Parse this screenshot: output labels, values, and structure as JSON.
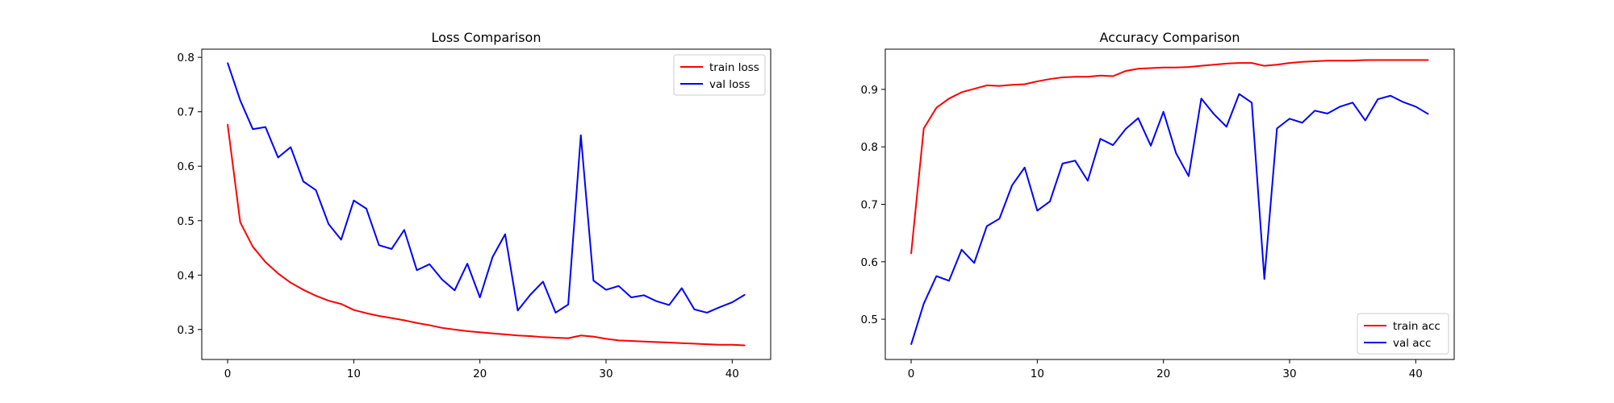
{
  "chart_data": [
    {
      "type": "line",
      "title": "Loss Comparison",
      "xlabel": "",
      "ylabel": "",
      "x": [
        0,
        1,
        2,
        3,
        4,
        5,
        6,
        7,
        8,
        9,
        10,
        11,
        12,
        13,
        14,
        15,
        16,
        17,
        18,
        19,
        20,
        21,
        22,
        23,
        24,
        25,
        26,
        27,
        28,
        29,
        30,
        31,
        32,
        33,
        34,
        35,
        36,
        37,
        38,
        39,
        40,
        41
      ],
      "xlim": [
        -2.05,
        43.05
      ],
      "ylim": [
        0.245,
        0.815
      ],
      "xticks": [
        0,
        10,
        20,
        30,
        40
      ],
      "yticks": [
        0.3,
        0.4,
        0.5,
        0.6,
        0.7,
        0.8
      ],
      "ytick_labels": [
        "0.3",
        "0.4",
        "0.5",
        "0.6",
        "0.7",
        "0.8"
      ],
      "legend_loc": "upper right",
      "grid": false,
      "series": [
        {
          "name": "train loss",
          "color": "#ff0000",
          "values": [
            0.677,
            0.497,
            0.452,
            0.424,
            0.403,
            0.386,
            0.373,
            0.362,
            0.353,
            0.347,
            0.336,
            0.33,
            0.325,
            0.321,
            0.317,
            0.312,
            0.308,
            0.303,
            0.3,
            0.297,
            0.295,
            0.293,
            0.291,
            0.289,
            0.288,
            0.286,
            0.285,
            0.284,
            0.289,
            0.287,
            0.283,
            0.28,
            0.279,
            0.278,
            0.277,
            0.276,
            0.275,
            0.274,
            0.273,
            0.272,
            0.272,
            0.271
          ]
        },
        {
          "name": "val loss",
          "color": "#0000ff",
          "values": [
            0.79,
            0.721,
            0.668,
            0.672,
            0.616,
            0.635,
            0.572,
            0.556,
            0.494,
            0.465,
            0.537,
            0.522,
            0.455,
            0.448,
            0.483,
            0.409,
            0.42,
            0.392,
            0.372,
            0.421,
            0.359,
            0.433,
            0.475,
            0.335,
            0.364,
            0.388,
            0.331,
            0.346,
            0.657,
            0.39,
            0.373,
            0.38,
            0.359,
            0.363,
            0.352,
            0.345,
            0.376,
            0.337,
            0.331,
            0.341,
            0.35,
            0.364
          ]
        }
      ]
    },
    {
      "type": "line",
      "title": "Accuracy Comparison",
      "xlabel": "",
      "ylabel": "",
      "x": [
        0,
        1,
        2,
        3,
        4,
        5,
        6,
        7,
        8,
        9,
        10,
        11,
        12,
        13,
        14,
        15,
        16,
        17,
        18,
        19,
        20,
        21,
        22,
        23,
        24,
        25,
        26,
        27,
        28,
        29,
        30,
        31,
        32,
        33,
        34,
        35,
        36,
        37,
        38,
        39,
        40,
        41
      ],
      "xlim": [
        -2.05,
        43.05
      ],
      "ylim": [
        0.43,
        0.97
      ],
      "xticks": [
        0,
        10,
        20,
        30,
        40
      ],
      "yticks": [
        0.5,
        0.6,
        0.7,
        0.8,
        0.9
      ],
      "ytick_labels": [
        "0.5",
        "0.6",
        "0.7",
        "0.8",
        "0.9"
      ],
      "legend_loc": "lower right",
      "grid": false,
      "series": [
        {
          "name": "train acc",
          "color": "#ff0000",
          "values": [
            0.614,
            0.832,
            0.868,
            0.884,
            0.895,
            0.901,
            0.907,
            0.906,
            0.908,
            0.909,
            0.914,
            0.918,
            0.921,
            0.922,
            0.922,
            0.924,
            0.923,
            0.932,
            0.936,
            0.937,
            0.938,
            0.938,
            0.939,
            0.941,
            0.943,
            0.945,
            0.946,
            0.946,
            0.941,
            0.943,
            0.946,
            0.948,
            0.949,
            0.95,
            0.95,
            0.95,
            0.951,
            0.951,
            0.951,
            0.951,
            0.951,
            0.951
          ]
        },
        {
          "name": "val acc",
          "color": "#0000ff",
          "values": [
            0.456,
            0.527,
            0.575,
            0.567,
            0.621,
            0.598,
            0.662,
            0.675,
            0.733,
            0.764,
            0.689,
            0.705,
            0.771,
            0.776,
            0.741,
            0.814,
            0.803,
            0.831,
            0.85,
            0.802,
            0.861,
            0.789,
            0.749,
            0.884,
            0.857,
            0.835,
            0.892,
            0.877,
            0.57,
            0.832,
            0.849,
            0.842,
            0.863,
            0.858,
            0.87,
            0.877,
            0.846,
            0.883,
            0.889,
            0.878,
            0.87,
            0.857
          ]
        }
      ]
    }
  ]
}
